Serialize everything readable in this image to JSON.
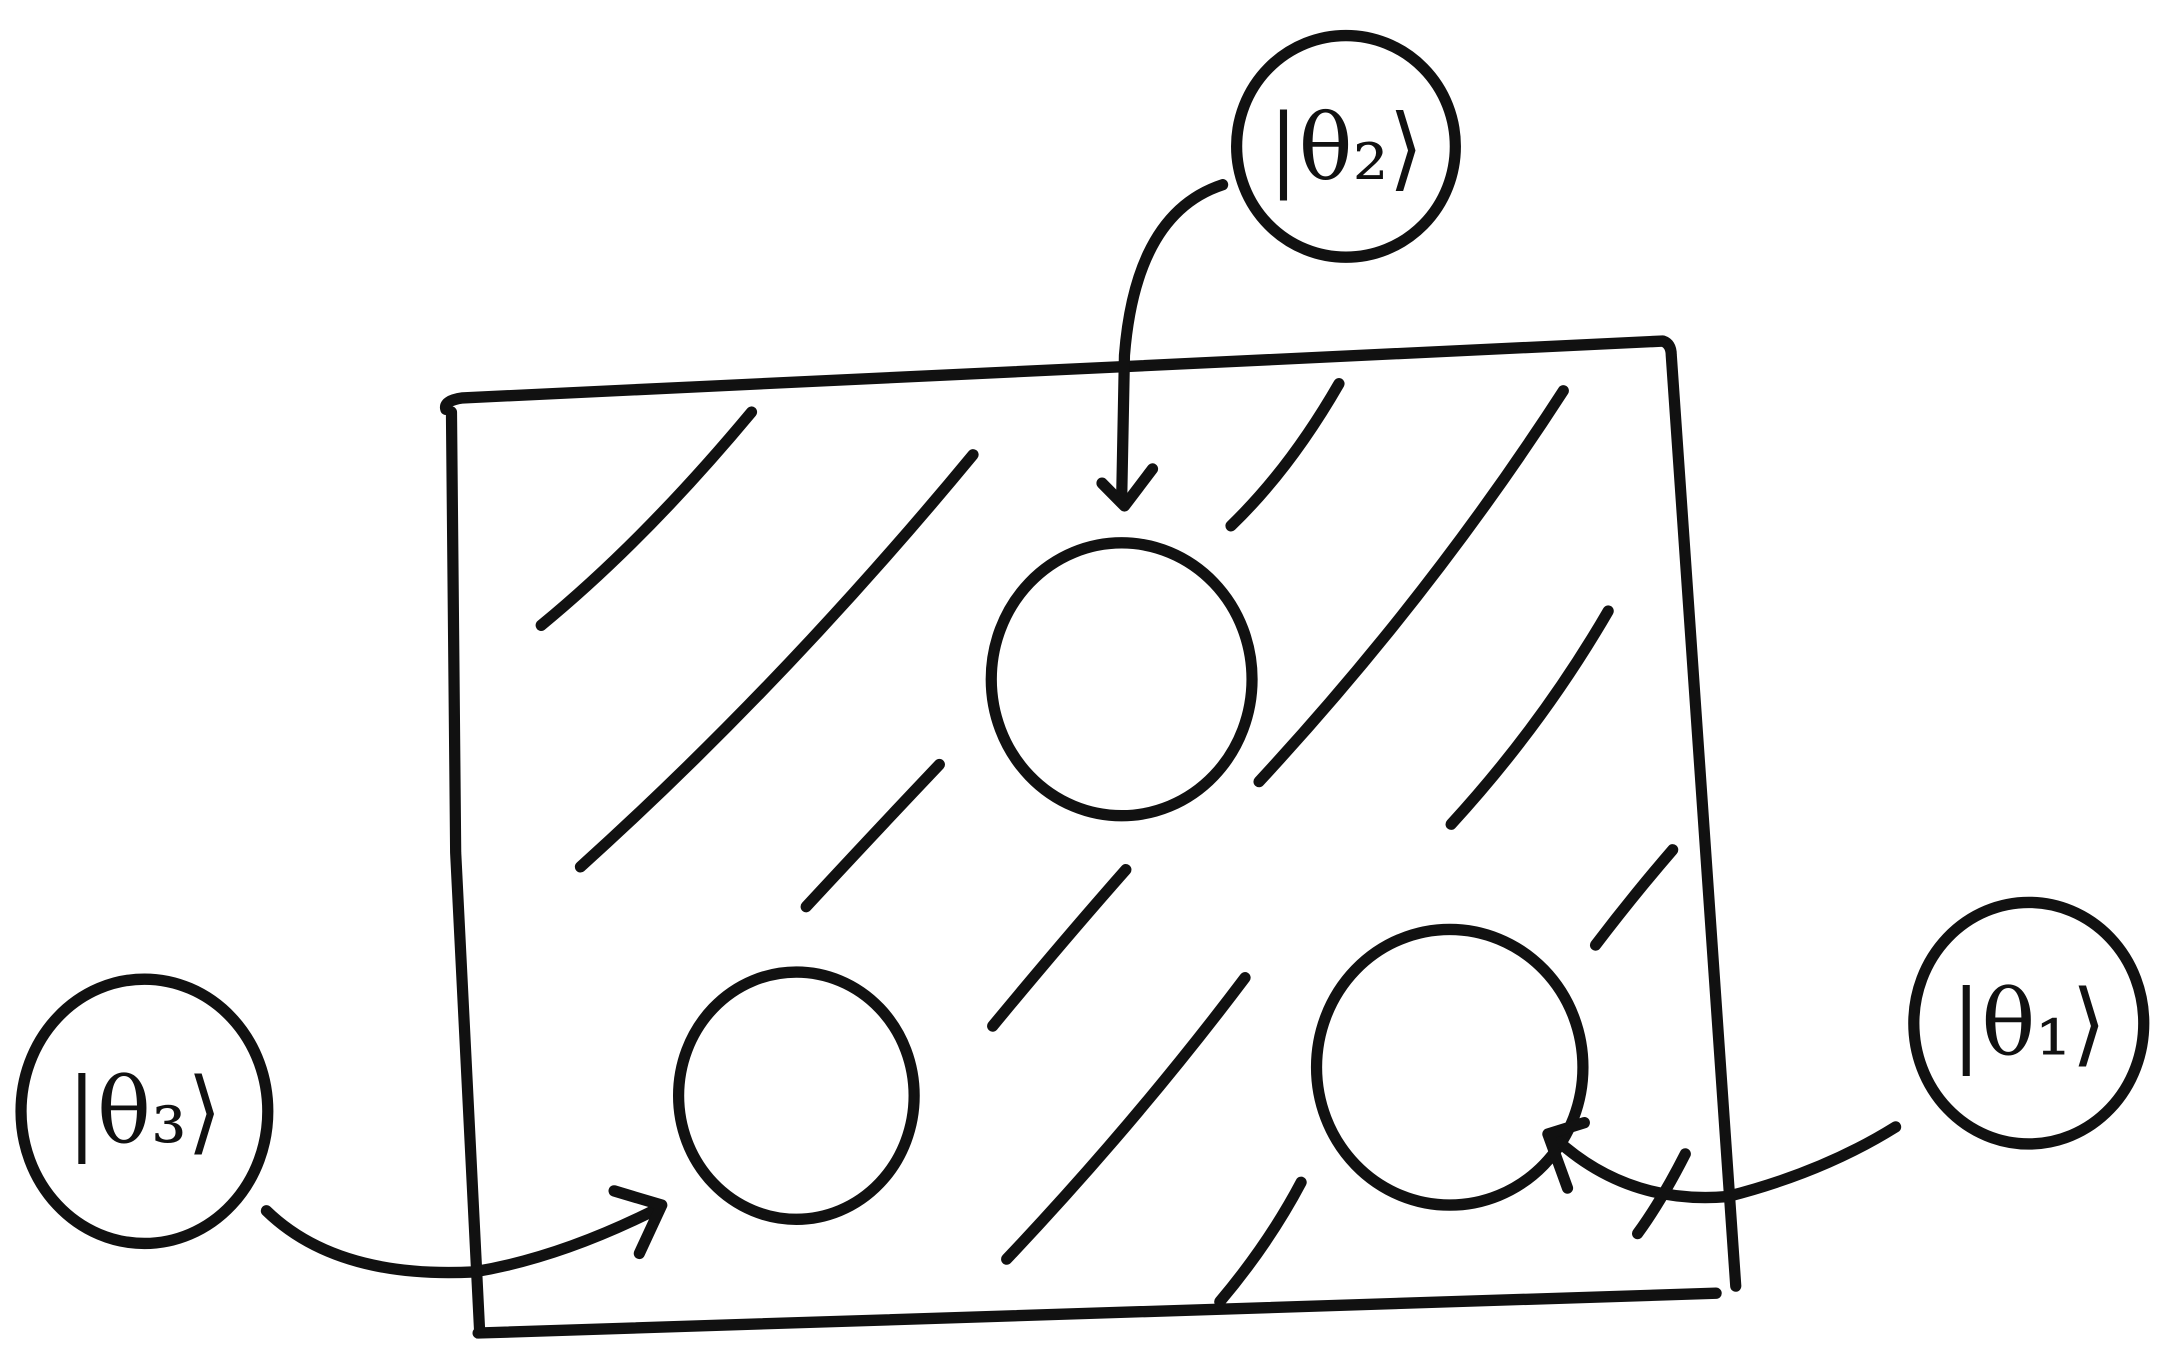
{
  "labels": {
    "state_1": "|θ₁⟩",
    "state_2": "|θ₂⟩",
    "state_3": "|θ₃⟩"
  },
  "colors": {
    "ink": "#111111",
    "background": "#ffffff"
  }
}
